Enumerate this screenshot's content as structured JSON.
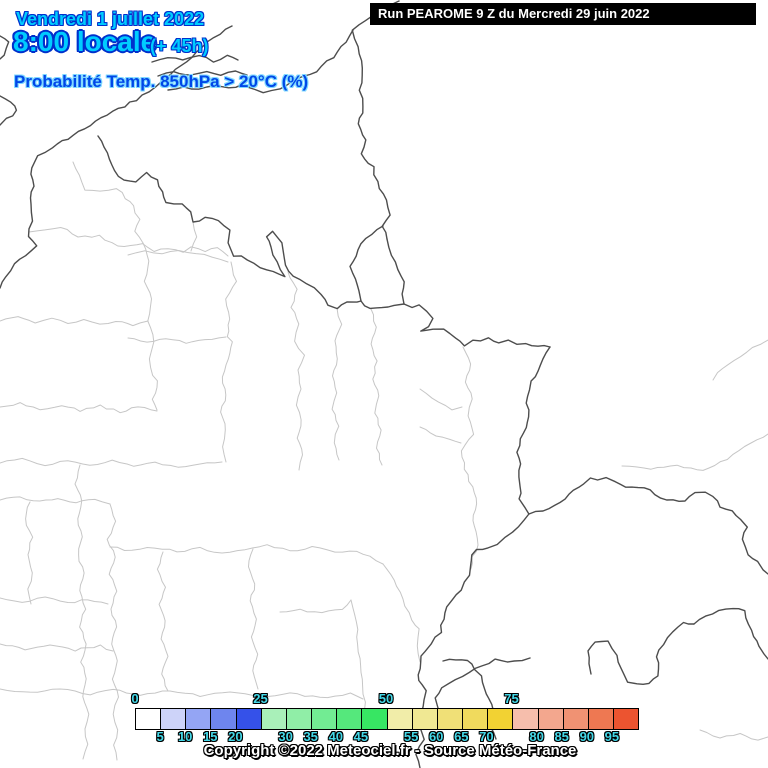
{
  "header": {
    "date_line": "Vendredi 1 juillet 2022",
    "time_line": "8:00 locale",
    "offset_label": "(+ 45h)",
    "param_line": "Probabilité Temp. 850hPa > 20°C (%)"
  },
  "run_bar": {
    "label": "Run PEAROME 9 Z du Mercredi 29 juin 2022"
  },
  "legend": {
    "unit": "%",
    "cells": [
      {
        "from": 0,
        "color": "#ffffff"
      },
      {
        "from": 5,
        "color": "#cdd3f9"
      },
      {
        "from": 10,
        "color": "#94a5f4"
      },
      {
        "from": 15,
        "color": "#6e85ee"
      },
      {
        "from": 20,
        "color": "#3551e9"
      },
      {
        "from": 25,
        "color": "#a9f0b9"
      },
      {
        "from": 30,
        "color": "#90eea7"
      },
      {
        "from": 35,
        "color": "#72ec93"
      },
      {
        "from": 40,
        "color": "#55e87c"
      },
      {
        "from": 45,
        "color": "#37e663"
      },
      {
        "from": 50,
        "color": "#f1eda9"
      },
      {
        "from": 55,
        "color": "#f0e893"
      },
      {
        "from": 60,
        "color": "#f0e077"
      },
      {
        "from": 65,
        "color": "#f0da5d"
      },
      {
        "from": 70,
        "color": "#f2d233"
      },
      {
        "from": 75,
        "color": "#f6beac"
      },
      {
        "from": 80,
        "color": "#f3a78e"
      },
      {
        "from": 85,
        "color": "#f09273"
      },
      {
        "from": 90,
        "color": "#ee7852"
      },
      {
        "from": 95,
        "color": "#ec5430"
      }
    ],
    "labels_above": [
      0,
      25,
      50,
      75
    ],
    "labels_below": [
      5,
      10,
      15,
      20,
      30,
      35,
      40,
      45,
      55,
      60,
      65,
      70,
      80,
      85,
      90,
      95
    ]
  },
  "footer": {
    "copyright": "Copyright ©2022 Meteociel.fr - Source Météo-France"
  },
  "colors": {
    "headline_fill": "#00ccff",
    "headline_outline": "#0030cc",
    "param_fill": "#0047e8",
    "param_outline": "#7fd9ff",
    "legend_label_fill": "#44d8e8",
    "run_bar_bg": "#000000",
    "run_bar_text": "#ffffff",
    "border_country": "#4d4d4d",
    "border_department": "#c6c6c6"
  }
}
